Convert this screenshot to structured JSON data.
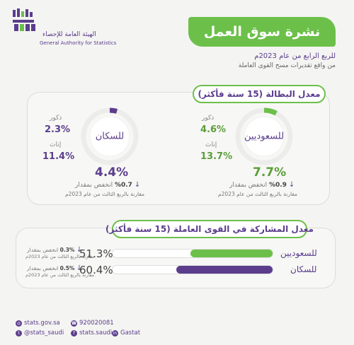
{
  "header": {
    "logo_ar": "الهيئة العامة للإحصاء",
    "logo_en": "General Authority for Statistics",
    "title": "نشرة سوق العمل",
    "subtitle1": "للربع الرابع من عام 2023م",
    "subtitle2": "من واقع تقديرات مسح القوى العاملة"
  },
  "unemployment": {
    "title": "معدل البطالة (15 سنة فأكثر)",
    "saudi": {
      "label": "للسعوديين",
      "males_label": "ذكور",
      "males_value": "4.6%",
      "females_label": "إناث",
      "females_value": "13.7%",
      "total": "7.7%",
      "change_label": "انخفض بمقدار",
      "change_value": "%0.9",
      "compare": "مقارنة بالربع الثالث من عام 2023م",
      "fraction": 0.077
    },
    "total": {
      "label": "للسكان",
      "males_label": "ذكور",
      "males_value": "2.3%",
      "females_label": "إناث",
      "females_value": "11.4%",
      "total": "4.4%",
      "change_label": "انخفض بمقدار",
      "change_value": "%0.7",
      "compare": "مقارنة بالربع الثالث من عام 2023م",
      "fraction": 0.044
    }
  },
  "participation": {
    "title": "معدل المشاركة في القوى العاملة (15 سنة فأكثر)",
    "rows": [
      {
        "name": "للسعوديين",
        "value": "51.3%",
        "fraction": 0.513,
        "change_label": "انخفض بمقدار",
        "change_value": "0.3%",
        "compare": "مقارنة بالربع الثالث من عام 2023م",
        "color": "#6cc04a"
      },
      {
        "name": "للسكان",
        "value": "60.4%",
        "fraction": 0.604,
        "change_label": "انخفض بمقدار",
        "change_value": "0.5%",
        "compare": "مقارنة بالربع الثالث من عام 2023م",
        "color": "#5b3d8c"
      }
    ]
  },
  "footer": {
    "website": "stats.gov.sa",
    "twitter": "@stats_saudi",
    "phone": "920020081",
    "facebook": "stats.saudi",
    "linkedin": "Gastat"
  },
  "colors": {
    "green": "#6cc04a",
    "purple": "#5b3d8c"
  }
}
